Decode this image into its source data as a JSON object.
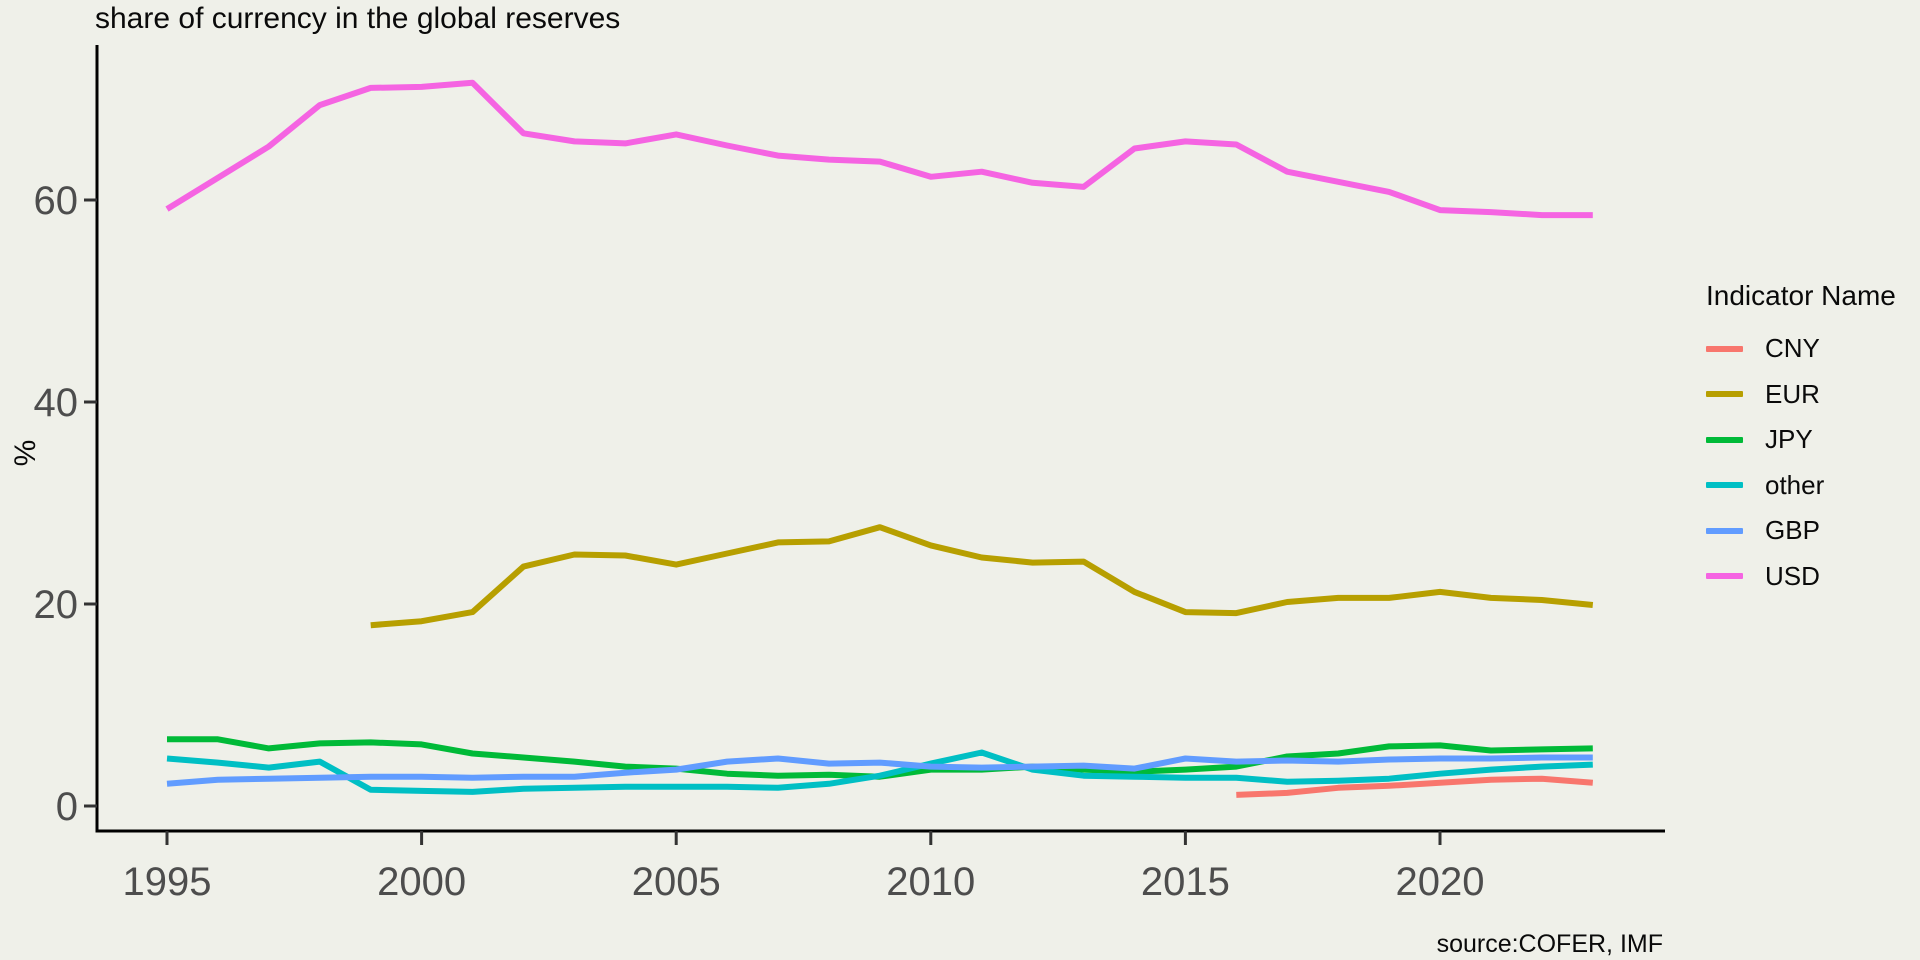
{
  "title": "share of currency in the global reserves",
  "y_axis_title": "%",
  "caption": "source:COFER, IMF",
  "legend": {
    "title": "Indicator Name",
    "items": [
      {
        "label": "CNY",
        "color": "#F8766D"
      },
      {
        "label": "EUR",
        "color": "#B79F00"
      },
      {
        "label": "JPY",
        "color": "#00BA38"
      },
      {
        "label": "other",
        "color": "#00BFC4"
      },
      {
        "label": "GBP",
        "color": "#619CFF"
      },
      {
        "label": "USD",
        "color": "#F564E2"
      }
    ]
  },
  "colors": {
    "background": "#EFF0E9",
    "axis_line": "#000000",
    "tick_mark": "#333333",
    "axis_text": "#4D4D4D"
  },
  "chart_data": {
    "type": "line",
    "title": "share of currency in the global reserves",
    "xlabel": "",
    "ylabel": "%",
    "grid": false,
    "legend_position": "right",
    "legend_title": "Indicator Name",
    "x_ticks": [
      1995,
      2000,
      2005,
      2010,
      2015,
      2020
    ],
    "y_ticks": [
      0,
      20,
      40,
      60
    ],
    "xlim": [
      1993.5,
      2024.5
    ],
    "ylim": [
      0,
      75
    ],
    "x_unit": "year",
    "y_unit": "percent",
    "series": [
      {
        "name": "CNY",
        "start_year": 2016,
        "values": [
          1.1,
          1.3,
          1.8,
          2.0,
          2.3,
          2.6,
          2.7,
          2.3
        ]
      },
      {
        "name": "EUR",
        "start_year": 1999,
        "values": [
          17.9,
          18.3,
          19.2,
          23.7,
          24.9,
          24.8,
          23.9,
          25.0,
          26.1,
          26.2,
          27.6,
          25.8,
          24.6,
          24.1,
          24.2,
          21.2,
          19.2,
          19.1,
          20.2,
          20.6,
          20.6,
          21.2,
          20.6,
          20.4,
          19.9
        ]
      },
      {
        "name": "JPY",
        "start_year": 1995,
        "values": [
          6.6,
          6.6,
          5.7,
          6.2,
          6.3,
          6.1,
          5.2,
          4.8,
          4.4,
          3.9,
          3.7,
          3.2,
          3.0,
          3.1,
          2.9,
          3.6,
          3.6,
          3.9,
          3.6,
          3.4,
          3.6,
          3.9,
          4.9,
          5.2,
          5.9,
          6.0,
          5.5,
          5.6,
          5.7
        ]
      },
      {
        "name": "other",
        "start_year": 1995,
        "values": [
          4.7,
          4.3,
          3.8,
          4.4,
          1.6,
          1.5,
          1.4,
          1.7,
          1.8,
          1.9,
          1.9,
          1.9,
          1.8,
          2.2,
          3.0,
          4.2,
          5.3,
          3.6,
          3.0,
          2.9,
          2.8,
          2.8,
          2.4,
          2.5,
          2.7,
          3.2,
          3.6,
          3.9,
          4.1
        ]
      },
      {
        "name": "GBP",
        "start_year": 1995,
        "values": [
          2.2,
          2.6,
          2.7,
          2.8,
          2.9,
          2.9,
          2.8,
          2.9,
          2.9,
          3.3,
          3.6,
          4.4,
          4.7,
          4.2,
          4.3,
          3.9,
          3.8,
          3.9,
          4.0,
          3.7,
          4.7,
          4.4,
          4.5,
          4.4,
          4.6,
          4.7,
          4.7,
          4.8,
          4.8
        ]
      },
      {
        "name": "USD",
        "start_year": 1995,
        "values": [
          59.1,
          62.2,
          65.3,
          69.4,
          71.1,
          71.2,
          71.6,
          66.6,
          65.8,
          65.6,
          66.5,
          65.4,
          64.4,
          64.0,
          63.8,
          62.3,
          62.8,
          61.7,
          61.3,
          65.1,
          65.8,
          65.5,
          62.8,
          61.8,
          60.8,
          59.0,
          58.8,
          58.5,
          58.5
        ]
      }
    ],
    "source": "source:COFER, IMF"
  }
}
